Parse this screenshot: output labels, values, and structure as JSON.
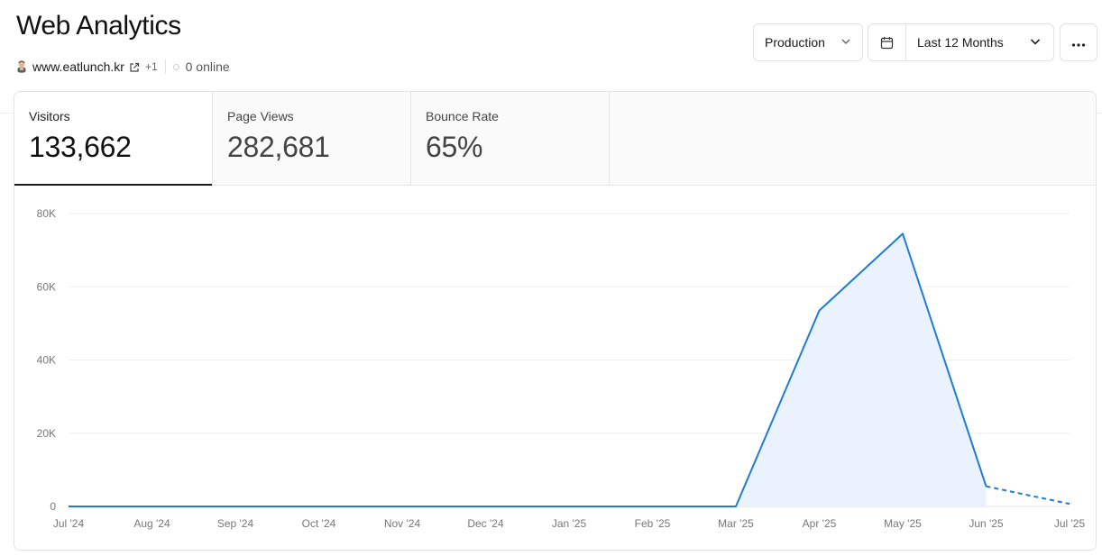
{
  "header": {
    "title": "Web Analytics",
    "site": {
      "domain": "www.eatlunch.kr",
      "extra_count": "+1",
      "online": "0 online"
    }
  },
  "toolbar": {
    "environment": "Production",
    "date_range": "Last 12 Months"
  },
  "icons": {
    "favicon": "person-emoji-icon",
    "external": "external-link-icon",
    "env_chevron": "chevron-down-icon",
    "calendar": "calendar-icon",
    "date_chevron": "chevron-down-icon",
    "more": "more-horizontal-icon"
  },
  "metrics": [
    {
      "label": "Visitors",
      "value": "133,662",
      "active": true
    },
    {
      "label": "Page Views",
      "value": "282,681",
      "active": false
    },
    {
      "label": "Bounce Rate",
      "value": "65%",
      "active": false
    }
  ],
  "chart_data": {
    "type": "area",
    "x": [
      "Jul '24",
      "Aug '24",
      "Sep '24",
      "Oct '24",
      "Nov '24",
      "Dec '24",
      "Jan '25",
      "Feb '25",
      "Mar '25",
      "Apr '25",
      "May '25",
      "Jun '25",
      "Jul '25"
    ],
    "yticks": [
      "0",
      "20K",
      "40K",
      "60K",
      "80K"
    ],
    "ylim": [
      0,
      80000
    ],
    "grid": true,
    "series": [
      {
        "values": [
          0,
          0,
          0,
          0,
          0,
          0,
          0,
          0,
          0,
          53500,
          74500,
          5500,
          700
        ],
        "dashed_from_index": 11,
        "color": "#1f7bd6",
        "fill": "#eaf3fd"
      }
    ]
  }
}
